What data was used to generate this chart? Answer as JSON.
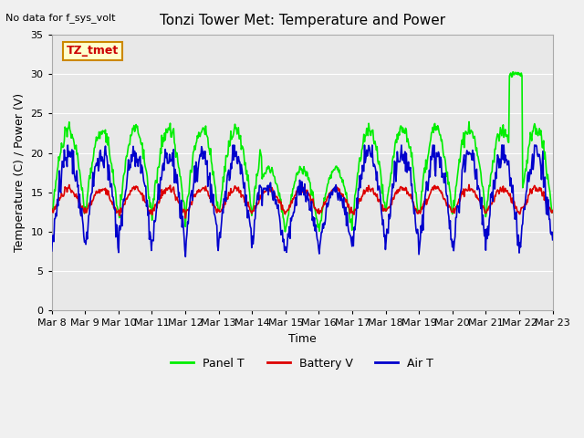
{
  "title": "Tonzi Tower Met: Temperature and Power",
  "top_left_text": "No data for f_sys_volt",
  "ylabel": "Temperature (C) / Power (V)",
  "xlabel": "Time",
  "ylim": [
    0,
    35
  ],
  "yticks": [
    0,
    5,
    10,
    15,
    20,
    25,
    30,
    35
  ],
  "xtick_labels": [
    "Mar 8",
    "Mar 9",
    "Mar 10",
    "Mar 11",
    "Mar 12",
    "Mar 13",
    "Mar 14",
    "Mar 15",
    "Mar 16",
    "Mar 17",
    "Mar 18",
    "Mar 19",
    "Mar 20",
    "Mar 21",
    "Mar 22",
    "Mar 23"
  ],
  "legend_labels": [
    "Panel T",
    "Battery V",
    "Air T"
  ],
  "legend_colors": [
    "#00ee00",
    "#dd0000",
    "#0000cc"
  ],
  "annotation_box": "TZ_tmet",
  "annotation_box_bg": "#ffffcc",
  "annotation_box_edge": "#cc8800",
  "grid_color": "#ffffff",
  "bg_color": "#e8e8e8",
  "panel_t_color": "#00ee00",
  "battery_v_color": "#dd0000",
  "air_t_color": "#0000cc",
  "n_days": 15,
  "points_per_day": 48
}
